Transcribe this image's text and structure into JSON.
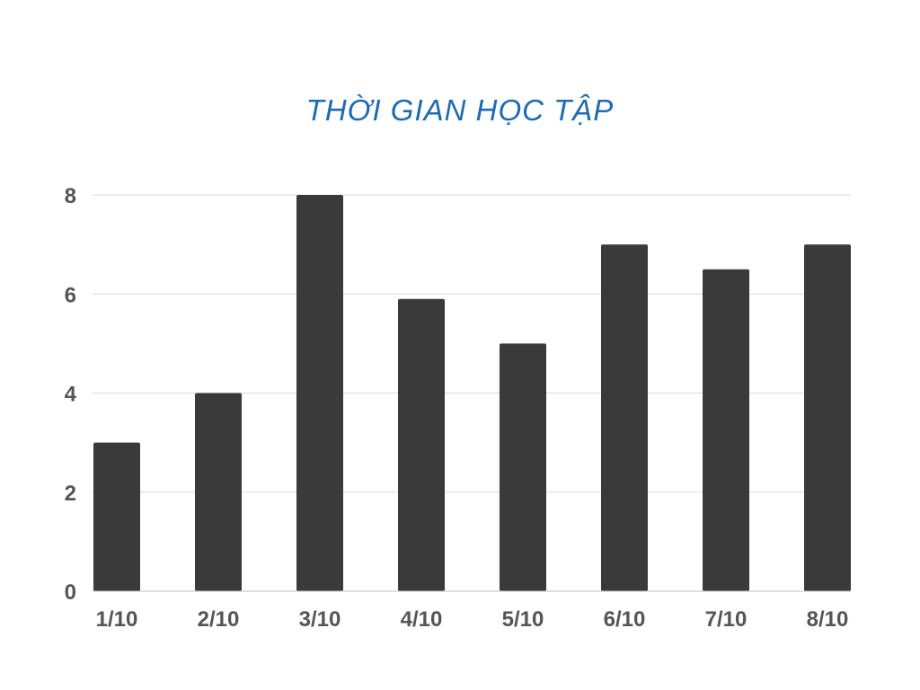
{
  "chart_data": {
    "type": "bar",
    "title": "THỜI GIAN HỌC TẬP",
    "categories": [
      "1/10",
      "2/10",
      "3/10",
      "4/10",
      "5/10",
      "6/10",
      "7/10",
      "8/10"
    ],
    "values": [
      3,
      4,
      8,
      5.9,
      5,
      7,
      6.5,
      7
    ],
    "ylim": [
      0,
      8
    ],
    "yticks": [
      0,
      2,
      4,
      6,
      8
    ],
    "grid": true,
    "legend": "none",
    "xlabel": "",
    "ylabel": ""
  },
  "colors": {
    "title": "#1f6bb0",
    "bar": "#3a3a3a",
    "grid": "#d9d9d9",
    "axis": "#bfbfbf",
    "tick_text": "#555555"
  }
}
